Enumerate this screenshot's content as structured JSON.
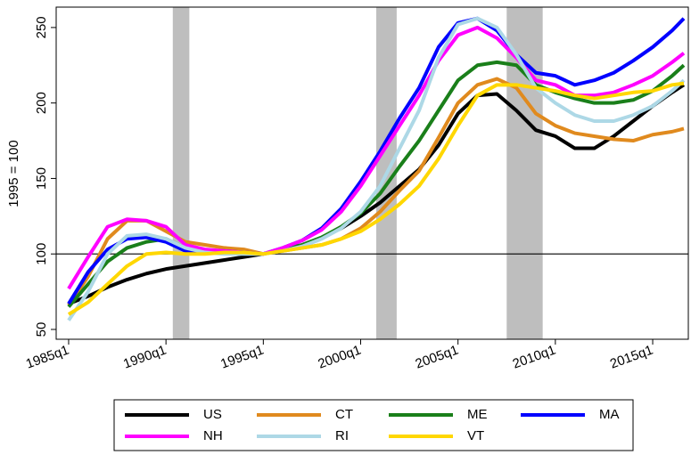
{
  "chart_data": {
    "type": "line",
    "ylabel": "1995 = 100",
    "x": [
      1985,
      1986,
      1987,
      1988,
      1989,
      1990,
      1991,
      1992,
      1993,
      1994,
      1995,
      1996,
      1997,
      1998,
      1999,
      2000,
      2001,
      2002,
      2003,
      2004,
      2005,
      2006,
      2007,
      2008,
      2009,
      2010,
      2011,
      2012,
      2013,
      2014,
      2015,
      2016,
      2016.6
    ],
    "series": [
      {
        "name": "US",
        "color": "#000000",
        "values": [
          67,
          72,
          78,
          83,
          87,
          90,
          92,
          94,
          96,
          98,
          100,
          103,
          106,
          111,
          117,
          125,
          134,
          145,
          156,
          172,
          193,
          205,
          206,
          195,
          182,
          178,
          170,
          170,
          178,
          188,
          198,
          207,
          212
        ]
      },
      {
        "name": "CT",
        "color": "#e08a1e",
        "values": [
          66,
          85,
          110,
          122,
          122,
          115,
          108,
          106,
          104,
          103,
          100,
          102,
          104,
          106,
          110,
          117,
          128,
          142,
          155,
          177,
          200,
          212,
          216,
          210,
          193,
          185,
          180,
          178,
          176,
          175,
          179,
          181,
          183
        ]
      },
      {
        "name": "ME",
        "color": "#1a7f1a",
        "values": [
          65,
          80,
          95,
          104,
          108,
          110,
          104,
          102,
          102,
          101,
          100,
          103,
          106,
          111,
          118,
          127,
          140,
          158,
          175,
          195,
          215,
          225,
          227,
          225,
          212,
          207,
          203,
          200,
          200,
          202,
          208,
          218,
          225
        ]
      },
      {
        "name": "MA",
        "color": "#0000ff",
        "values": [
          67,
          88,
          103,
          110,
          111,
          108,
          102,
          101,
          101,
          101,
          100,
          104,
          109,
          117,
          130,
          148,
          168,
          190,
          210,
          237,
          253,
          256,
          248,
          232,
          220,
          218,
          212,
          215,
          220,
          228,
          237,
          248,
          256
        ]
      },
      {
        "name": "NH",
        "color": "#ff00ff",
        "values": [
          77,
          98,
          118,
          123,
          122,
          118,
          106,
          103,
          102,
          101,
          100,
          104,
          109,
          116,
          128,
          145,
          165,
          185,
          205,
          228,
          245,
          250,
          243,
          230,
          215,
          212,
          205,
          205,
          207,
          212,
          218,
          227,
          233
        ]
      },
      {
        "name": "RI",
        "color": "#add8e6",
        "values": [
          56,
          75,
          100,
          112,
          113,
          110,
          104,
          101,
          100,
          100,
          100,
          102,
          105,
          110,
          117,
          128,
          145,
          170,
          195,
          230,
          252,
          256,
          250,
          232,
          210,
          200,
          192,
          188,
          188,
          192,
          198,
          208,
          215
        ]
      },
      {
        "name": "VT",
        "color": "#ffd700",
        "values": [
          60,
          68,
          80,
          92,
          100,
          101,
          100,
          100,
          101,
          101,
          100,
          102,
          104,
          106,
          110,
          115,
          123,
          133,
          145,
          163,
          185,
          205,
          212,
          212,
          210,
          208,
          205,
          203,
          205,
          207,
          208,
          212,
          213
        ]
      }
    ],
    "recessions": [
      [
        1990.35,
        1991.2
      ],
      [
        2000.8,
        2001.85
      ],
      [
        2007.5,
        2009.35
      ]
    ],
    "recession_color": "#bebebe",
    "hline": 100,
    "xlim": [
      1984.36,
      2016.83
    ],
    "xticks": [
      {
        "value": 1985,
        "label": "1985q1"
      },
      {
        "value": 1990,
        "label": "1990q1"
      },
      {
        "value": 1995,
        "label": "1995q1"
      },
      {
        "value": 2000,
        "label": "2000q1"
      },
      {
        "value": 2005,
        "label": "2005q1"
      },
      {
        "value": 2010,
        "label": "2010q1"
      },
      {
        "value": 2015,
        "label": "2015q1"
      }
    ],
    "ylim": [
      43.5,
      263.5
    ],
    "yticks": [
      50,
      100,
      150,
      200,
      250
    ],
    "legend": "bottom"
  }
}
